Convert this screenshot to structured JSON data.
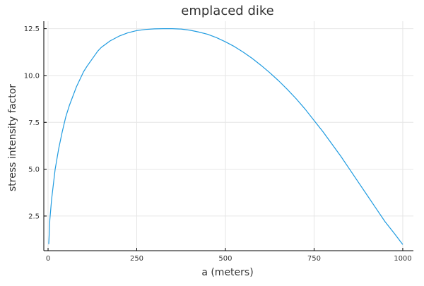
{
  "chart_data": {
    "type": "line",
    "title": "emplaced dike",
    "xlabel": "a (meters)",
    "ylabel": "stress intensity factor",
    "xlim": [
      -12,
      1030
    ],
    "ylim": [
      0.65,
      12.9
    ],
    "xticks": [
      0,
      250,
      500,
      750,
      1000
    ],
    "xtick_labels": [
      "0",
      "250",
      "500",
      "750",
      "1000"
    ],
    "yticks": [
      2.5,
      5.0,
      7.5,
      10.0,
      12.5
    ],
    "ytick_labels": [
      "2.5",
      "5.0",
      "7.5",
      "10.0",
      "12.5"
    ],
    "grid": true,
    "legend": "none",
    "series": [
      {
        "color": "#1f9be0",
        "x": [
          2,
          5,
          10,
          20,
          30,
          40,
          50,
          60,
          70,
          80,
          90,
          100,
          110,
          125,
          140,
          150,
          175,
          200,
          225,
          250,
          275,
          300,
          325,
          350,
          375,
          400,
          425,
          450,
          475,
          500,
          525,
          550,
          575,
          600,
          625,
          650,
          675,
          700,
          725,
          750,
          775,
          800,
          825,
          850,
          875,
          900,
          925,
          950,
          975,
          1000
        ],
        "y": [
          1.0,
          2.3,
          3.4,
          5.0,
          6.1,
          7.0,
          7.8,
          8.4,
          8.9,
          9.4,
          9.8,
          10.2,
          10.5,
          10.9,
          11.3,
          11.5,
          11.85,
          12.1,
          12.28,
          12.4,
          12.46,
          12.49,
          12.5,
          12.5,
          12.48,
          12.42,
          12.32,
          12.2,
          12.02,
          11.8,
          11.55,
          11.25,
          10.92,
          10.55,
          10.15,
          9.72,
          9.25,
          8.75,
          8.2,
          7.6,
          7.0,
          6.35,
          5.7,
          5.0,
          4.3,
          3.6,
          2.9,
          2.2,
          1.6,
          0.98
        ]
      }
    ]
  }
}
